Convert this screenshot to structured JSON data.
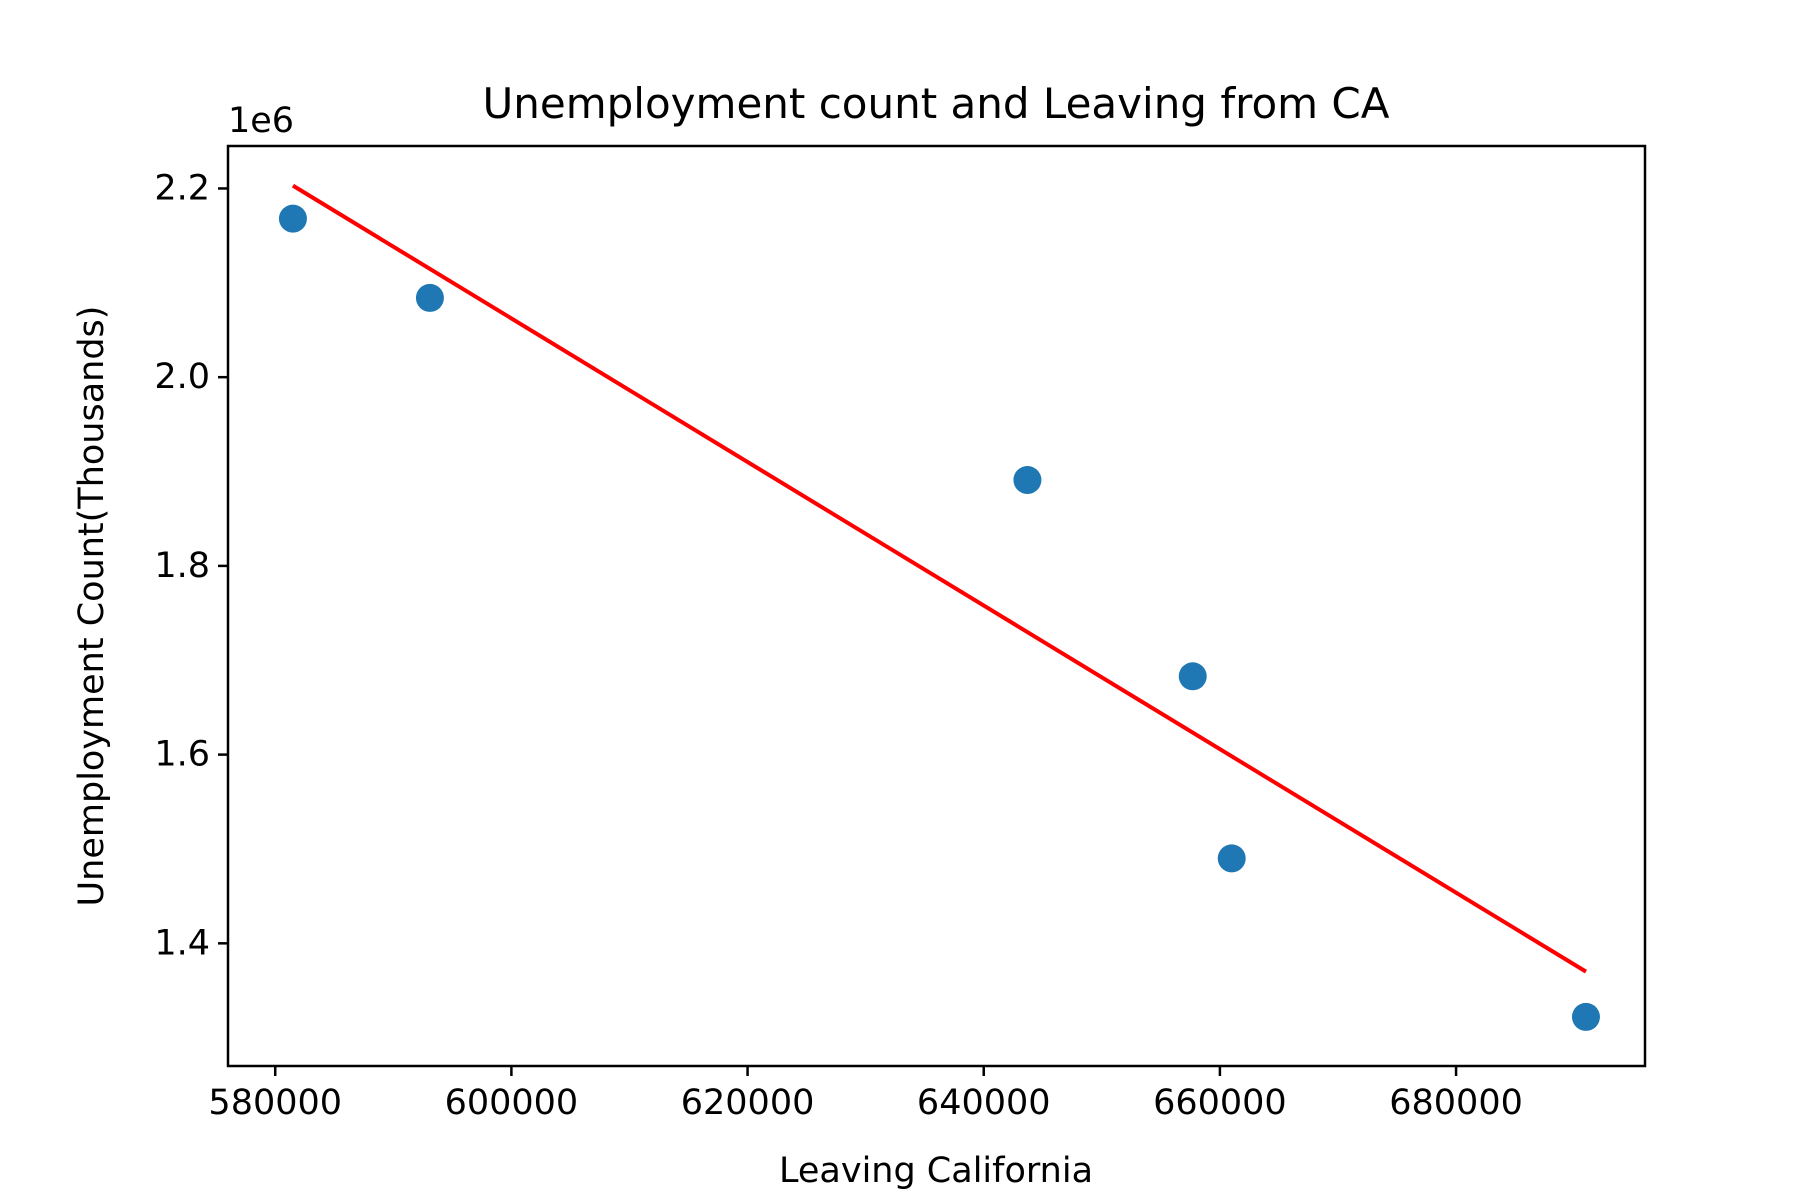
{
  "chart_data": {
    "type": "scatter",
    "title": "Unemployment count and Leaving from CA",
    "xlabel": "Leaving California",
    "ylabel": "Unemployment Count(Thousands)",
    "y_offset_label": "1e6",
    "xlim": [
      576000,
      696000
    ],
    "ylim": [
      1270000,
      2245000
    ],
    "x_ticks": [
      580000,
      600000,
      620000,
      640000,
      660000,
      680000
    ],
    "x_tick_labels": [
      "580000",
      "600000",
      "620000",
      "640000",
      "660000",
      "680000"
    ],
    "y_ticks": [
      1400000,
      1600000,
      1800000,
      2000000,
      2200000
    ],
    "y_tick_labels": [
      "1.4",
      "1.6",
      "1.8",
      "2.0",
      "2.2"
    ],
    "grid": false,
    "series": [
      {
        "kind": "scatter",
        "color": "#1f77b4",
        "x": [
          581500,
          593100,
          643700,
          657700,
          661000,
          691000
        ],
        "y": [
          2168000,
          2084000,
          1891000,
          1683000,
          1490000,
          1322000
        ]
      },
      {
        "kind": "line",
        "color": "#ff0000",
        "x": [
          581500,
          691000
        ],
        "y": [
          2203000,
          1370000
        ]
      }
    ]
  }
}
